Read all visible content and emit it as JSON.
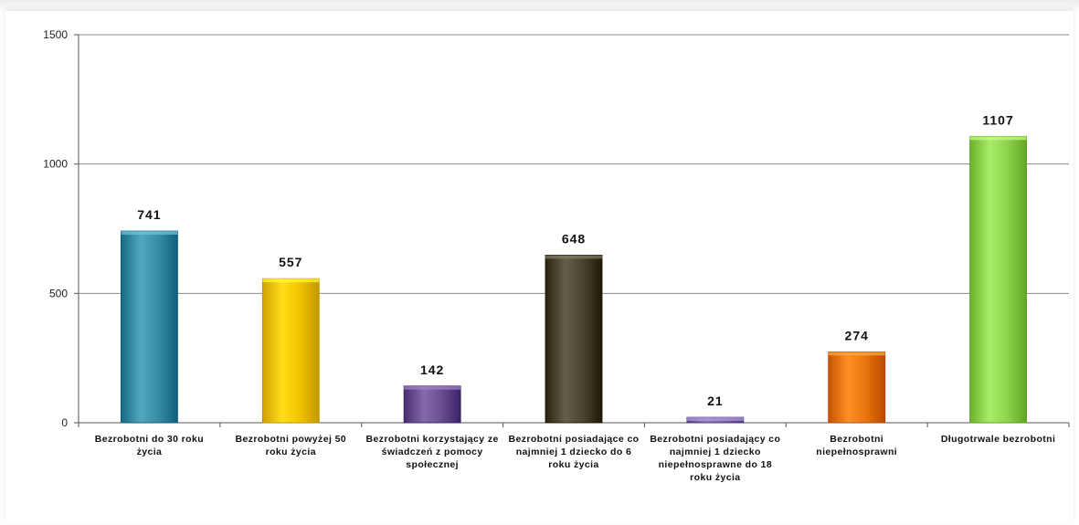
{
  "chart_data": {
    "type": "bar",
    "categories": [
      "Bezrobotni do 30 roku życia",
      "Bezrobotni powyżej 50 roku życia",
      "Bezrobotni korzystający ze świadczeń z pomocy społecznej",
      "Bezrobotni posiadające co najmniej 1 dziecko do 6 roku życia",
      "Bezrobotni posiadający co najmniej 1 dziecko niepełnosprawne do 18 roku życia",
      "Bezrobotni niepełnosprawni",
      "Długotrwale bezrobotni"
    ],
    "values": [
      741,
      557,
      142,
      648,
      21,
      274,
      1107
    ],
    "data_labels": [
      "741",
      "557",
      "142",
      "648",
      "21",
      "274",
      "1107"
    ],
    "colors": [
      "#3a8da8",
      "#f2c400",
      "#6a4f95",
      "#4a4630",
      "#7a65a8",
      "#e8760e",
      "#8fd44e"
    ],
    "ylim": [
      0,
      1500
    ],
    "yticks": [
      "0",
      "500",
      "1000",
      "1500"
    ],
    "grid": true,
    "legend": "none",
    "title": "",
    "xlabel": "",
    "ylabel": ""
  }
}
